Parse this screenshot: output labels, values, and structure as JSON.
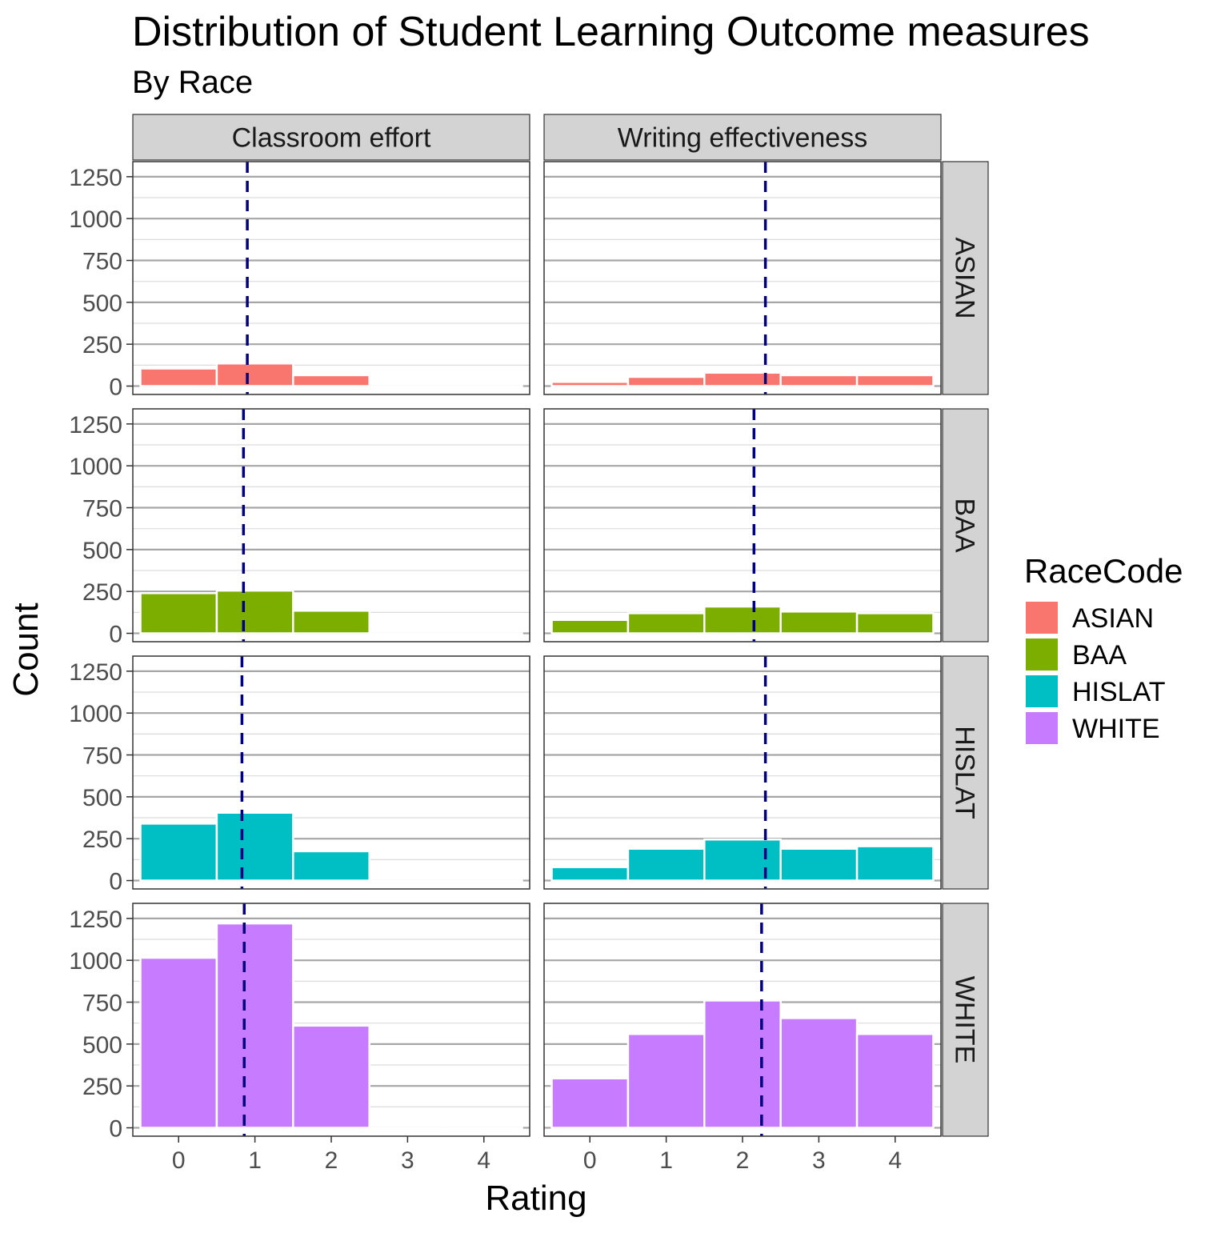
{
  "chart_data": {
    "type": "bar",
    "title": "Distribution of Student Learning Outcome measures",
    "subtitle": "By Race",
    "xlabel": "Rating",
    "ylabel": "Count",
    "x": [
      0,
      1,
      2,
      3,
      4
    ],
    "x_tick_labels": [
      "0",
      "1",
      "2",
      "3",
      "4"
    ],
    "xlim": [
      -0.6,
      4.6
    ],
    "ylim": [
      -50,
      1340
    ],
    "y_ticks": [
      0,
      250,
      500,
      750,
      1000,
      1250
    ],
    "y_tick_labels": [
      "0",
      "250",
      "500",
      "750",
      "1000",
      "1250"
    ],
    "grid": true,
    "legend": {
      "title": "RaceCode",
      "position": "right"
    },
    "facet_columns": [
      "Classroom effort",
      "Writing effectiveness"
    ],
    "facet_rows": [
      "ASIAN",
      "BAA",
      "HISLAT",
      "WHITE"
    ],
    "colors": {
      "ASIAN": "#F8766D",
      "BAA": "#7CAE00",
      "HISLAT": "#00BFC4",
      "WHITE": "#C77CFF",
      "mean_line": "#000080"
    },
    "series": [
      {
        "name": "ASIAN",
        "classroom_effort": [
          105,
          135,
          65,
          0,
          0
        ],
        "writing_effectiveness": [
          25,
          55,
          80,
          65,
          65
        ],
        "mean": [
          0.9,
          2.3
        ]
      },
      {
        "name": "BAA",
        "classroom_effort": [
          240,
          255,
          135,
          0,
          0
        ],
        "writing_effectiveness": [
          80,
          120,
          160,
          130,
          120
        ],
        "mean": [
          0.85,
          2.15
        ]
      },
      {
        "name": "HISLAT",
        "classroom_effort": [
          340,
          405,
          175,
          0,
          0
        ],
        "writing_effectiveness": [
          80,
          190,
          245,
          190,
          205
        ],
        "mean": [
          0.83,
          2.3
        ]
      },
      {
        "name": "WHITE",
        "classroom_effort": [
          1015,
          1220,
          610,
          0,
          0
        ],
        "writing_effectiveness": [
          295,
          560,
          760,
          655,
          560
        ],
        "mean": [
          0.86,
          2.25
        ]
      }
    ]
  }
}
